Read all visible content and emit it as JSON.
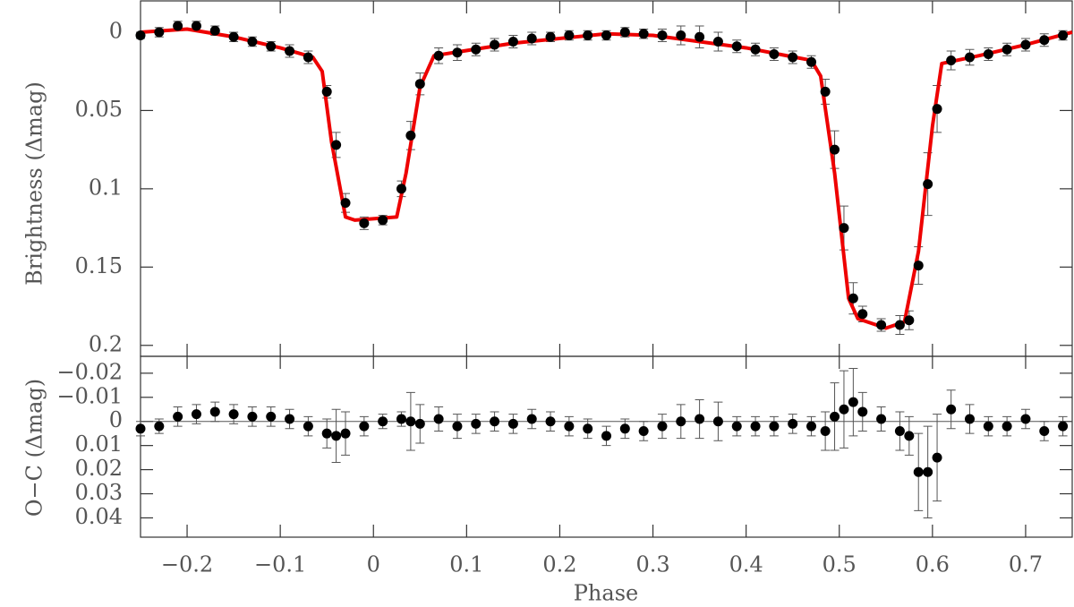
{
  "chart_data": [
    {
      "type": "scatter",
      "ylabel": "Brightness (Δmag)",
      "x": [
        -0.25,
        -0.23,
        -0.21,
        -0.19,
        -0.17,
        -0.15,
        -0.13,
        -0.11,
        -0.09,
        -0.07,
        -0.05,
        -0.04,
        -0.03,
        -0.01,
        0.01,
        0.03,
        0.04,
        0.05,
        0.07,
        0.09,
        0.11,
        0.13,
        0.15,
        0.17,
        0.19,
        0.21,
        0.23,
        0.25,
        0.27,
        0.29,
        0.31,
        0.33,
        0.35,
        0.37,
        0.39,
        0.41,
        0.43,
        0.45,
        0.47,
        0.485,
        0.495,
        0.505,
        0.515,
        0.525,
        0.545,
        0.565,
        0.575,
        0.585,
        0.595,
        0.605,
        0.62,
        0.64,
        0.66,
        0.68,
        0.7,
        0.72,
        0.74
      ],
      "values": [
        0.002,
        0,
        -0.004,
        -0.004,
        -0.001,
        0.003,
        0.006,
        0.009,
        0.012,
        0.016,
        0.038,
        0.072,
        0.109,
        0.122,
        0.12,
        0.1,
        0.066,
        0.033,
        0.015,
        0.013,
        0.011,
        0.008,
        0.006,
        0.004,
        0.003,
        0.002,
        0.002,
        0.002,
        0,
        0.001,
        0.002,
        0.002,
        0.003,
        0.006,
        0.009,
        0.011,
        0.014,
        0.016,
        0.019,
        0.038,
        0.075,
        0.125,
        0.17,
        0.18,
        0.187,
        0.187,
        0.184,
        0.149,
        0.097,
        0.049,
        0.018,
        0.016,
        0.014,
        0.011,
        0.008,
        0.005,
        0.002
      ],
      "errors": [
        0.002,
        0.003,
        0.003,
        0.003,
        0.003,
        0.003,
        0.003,
        0.003,
        0.004,
        0.004,
        0.004,
        0.008,
        0.006,
        0.004,
        0.003,
        0.005,
        0.009,
        0.007,
        0.005,
        0.005,
        0.004,
        0.004,
        0.004,
        0.004,
        0.003,
        0.003,
        0.003,
        0.003,
        0.003,
        0.003,
        0.004,
        0.006,
        0.007,
        0.006,
        0.004,
        0.004,
        0.004,
        0.004,
        0.004,
        0.008,
        0.012,
        0.014,
        0.01,
        0.005,
        0.004,
        0.006,
        0.006,
        0.012,
        0.02,
        0.015,
        0.006,
        0.005,
        0.004,
        0.004,
        0.004,
        0.004,
        0.003
      ],
      "color": "#000000",
      "model_x": [
        -0.25,
        -0.2,
        -0.15,
        -0.1,
        -0.065,
        -0.055,
        -0.045,
        -0.03,
        -0.02,
        0.025,
        0.035,
        0.05,
        0.065,
        0.15,
        0.25,
        0.3,
        0.4,
        0.47,
        0.48,
        0.495,
        0.51,
        0.52,
        0.55,
        0.57,
        0.585,
        0.6,
        0.61,
        0.65,
        0.7,
        0.75
      ],
      "model_values": [
        0,
        -0.002,
        0.003,
        0.01,
        0.016,
        0.025,
        0.07,
        0.118,
        0.12,
        0.118,
        0.09,
        0.035,
        0.015,
        0.007,
        0.001,
        0.002,
        0.01,
        0.018,
        0.028,
        0.09,
        0.17,
        0.183,
        0.189,
        0.185,
        0.14,
        0.06,
        0.02,
        0.015,
        0.008,
        0
      ],
      "model_color": "#ee0000",
      "xlim": [
        -0.25,
        0.75
      ],
      "ylim": [
        0.207,
        -0.02
      ],
      "xticks": [
        {
          "value": -0.2,
          "label": "−0.2"
        },
        {
          "value": -0.1,
          "label": "−0.1"
        },
        0,
        0.1,
        0.2,
        0.3,
        0.4,
        0.5,
        0.6,
        0.7
      ],
      "yticks": [
        0,
        0.05,
        0.1,
        0.15,
        0.2
      ]
    },
    {
      "type": "scatter",
      "ylabel": "O−C (Δmag)",
      "xlabel": "Phase",
      "x": [
        -0.25,
        -0.23,
        -0.21,
        -0.19,
        -0.17,
        -0.15,
        -0.13,
        -0.11,
        -0.09,
        -0.07,
        -0.05,
        -0.04,
        -0.03,
        -0.01,
        0.01,
        0.03,
        0.04,
        0.05,
        0.07,
        0.09,
        0.11,
        0.13,
        0.15,
        0.17,
        0.19,
        0.21,
        0.23,
        0.25,
        0.27,
        0.29,
        0.31,
        0.33,
        0.35,
        0.37,
        0.39,
        0.41,
        0.43,
        0.45,
        0.47,
        0.485,
        0.495,
        0.505,
        0.515,
        0.525,
        0.545,
        0.565,
        0.575,
        0.585,
        0.595,
        0.605,
        0.62,
        0.64,
        0.66,
        0.68,
        0.7,
        0.72,
        0.74
      ],
      "values": [
        0.003,
        0.002,
        -0.002,
        -0.003,
        -0.004,
        -0.003,
        -0.002,
        -0.002,
        -0.001,
        0.002,
        0.005,
        0.006,
        0.005,
        0.002,
        0,
        -0.001,
        0,
        0.001,
        -0.001,
        0.002,
        0.001,
        0,
        0.001,
        -0.001,
        0,
        0.002,
        0.003,
        0.006,
        0.003,
        0.004,
        0.002,
        0,
        -0.001,
        0,
        0.002,
        0.002,
        0.002,
        0.001,
        0.002,
        0.004,
        -0.002,
        -0.005,
        -0.008,
        -0.004,
        -0.001,
        0.004,
        0.006,
        0.021,
        0.021,
        0.015,
        -0.005,
        -0.001,
        0.002,
        0.002,
        -0.001,
        0.004,
        0.002
      ],
      "errors": [
        0.003,
        0.003,
        0.004,
        0.004,
        0.004,
        0.004,
        0.004,
        0.004,
        0.004,
        0.004,
        0.006,
        0.011,
        0.009,
        0.004,
        0.003,
        0.003,
        0.012,
        0.008,
        0.005,
        0.005,
        0.004,
        0.004,
        0.004,
        0.004,
        0.004,
        0.004,
        0.004,
        0.004,
        0.004,
        0.004,
        0.005,
        0.007,
        0.008,
        0.008,
        0.004,
        0.004,
        0.004,
        0.004,
        0.004,
        0.008,
        0.014,
        0.016,
        0.014,
        0.008,
        0.005,
        0.008,
        0.008,
        0.016,
        0.019,
        0.018,
        0.008,
        0.006,
        0.004,
        0.004,
        0.004,
        0.004,
        0.004
      ],
      "color": "#000000",
      "hline": 0,
      "xlim": [
        -0.25,
        0.75
      ],
      "ylim": [
        0.048,
        -0.027
      ],
      "xticks": [
        {
          "value": -0.2,
          "label": "−0.2"
        },
        {
          "value": -0.1,
          "label": "−0.1"
        },
        0,
        0.1,
        0.2,
        0.3,
        0.4,
        0.5,
        0.6,
        0.7
      ],
      "yticks": [
        {
          "value": -0.02,
          "label": "−0.02"
        },
        {
          "value": -0.01,
          "label": "−0.01"
        },
        0,
        0.01,
        0.02,
        0.03,
        0.04
      ]
    }
  ]
}
